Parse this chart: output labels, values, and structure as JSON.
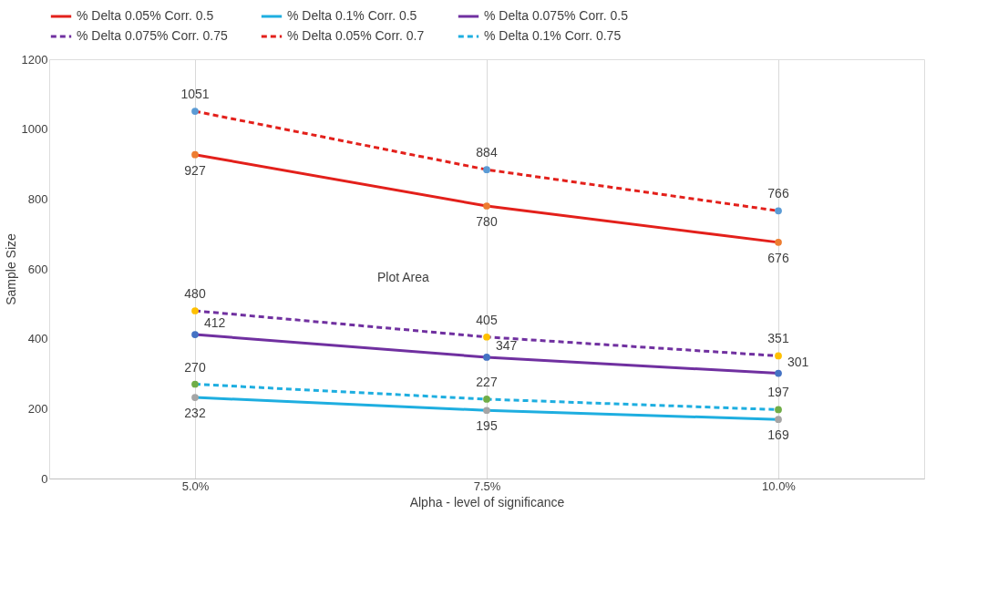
{
  "chart_data": {
    "type": "line",
    "xlabel": "Alpha - level of significance",
    "ylabel": "Sample Size",
    "categories": [
      "5.0%",
      "7.5%",
      "10.0%"
    ],
    "series": [
      {
        "name": "% Delta 0.05% Corr. 0.5",
        "color": "#e3201b",
        "colors": [
          "#ed7d31",
          "#ed7d31",
          "#ed7d31"
        ],
        "line_style": "solid",
        "values": [
          927,
          780,
          676
        ]
      },
      {
        "name": "% Delta 0.1% Corr. 0.5",
        "color": "#1eaee0",
        "colors": [
          "#a5a5a5",
          "#a5a5a5",
          "#a5a5a5"
        ],
        "line_style": "solid",
        "values": [
          232,
          195,
          169
        ]
      },
      {
        "name": "% Delta 0.075% Corr. 0.5",
        "color": "#7030a0",
        "colors": [
          "#4472c4",
          "#4472c4",
          "#4472c4"
        ],
        "line_style": "solid",
        "values": [
          412,
          347,
          301
        ]
      },
      {
        "name": "% Delta 0.075% Corr. 0.75",
        "color": "#7030a0",
        "colors": [
          "#ffc000",
          "#ffc000",
          "#ffc000"
        ],
        "line_style": "dashed",
        "values": [
          480,
          405,
          351
        ]
      },
      {
        "name": "% Delta 0.05% Corr. 0.7",
        "color": "#e3201b",
        "colors": [
          "#5b9bd5",
          "#5b9bd5",
          "#5b9bd5"
        ],
        "line_style": "dashed",
        "values": [
          1051,
          884,
          766
        ]
      },
      {
        "name": "% Delta 0.1% Corr. 0.75",
        "color": "#1eaee0",
        "colors": [
          "#70ad47",
          "#70ad47",
          "#70ad47"
        ],
        "line_style": "dashed",
        "values": [
          270,
          227,
          197
        ]
      }
    ],
    "ylim": [
      0,
      1200
    ],
    "yticks": [
      0,
      200,
      400,
      600,
      800,
      1000,
      1200
    ],
    "grid": "x",
    "legend": "top",
    "marker": "circle",
    "data_labels": true,
    "annotations": [
      "Plot Area"
    ]
  }
}
